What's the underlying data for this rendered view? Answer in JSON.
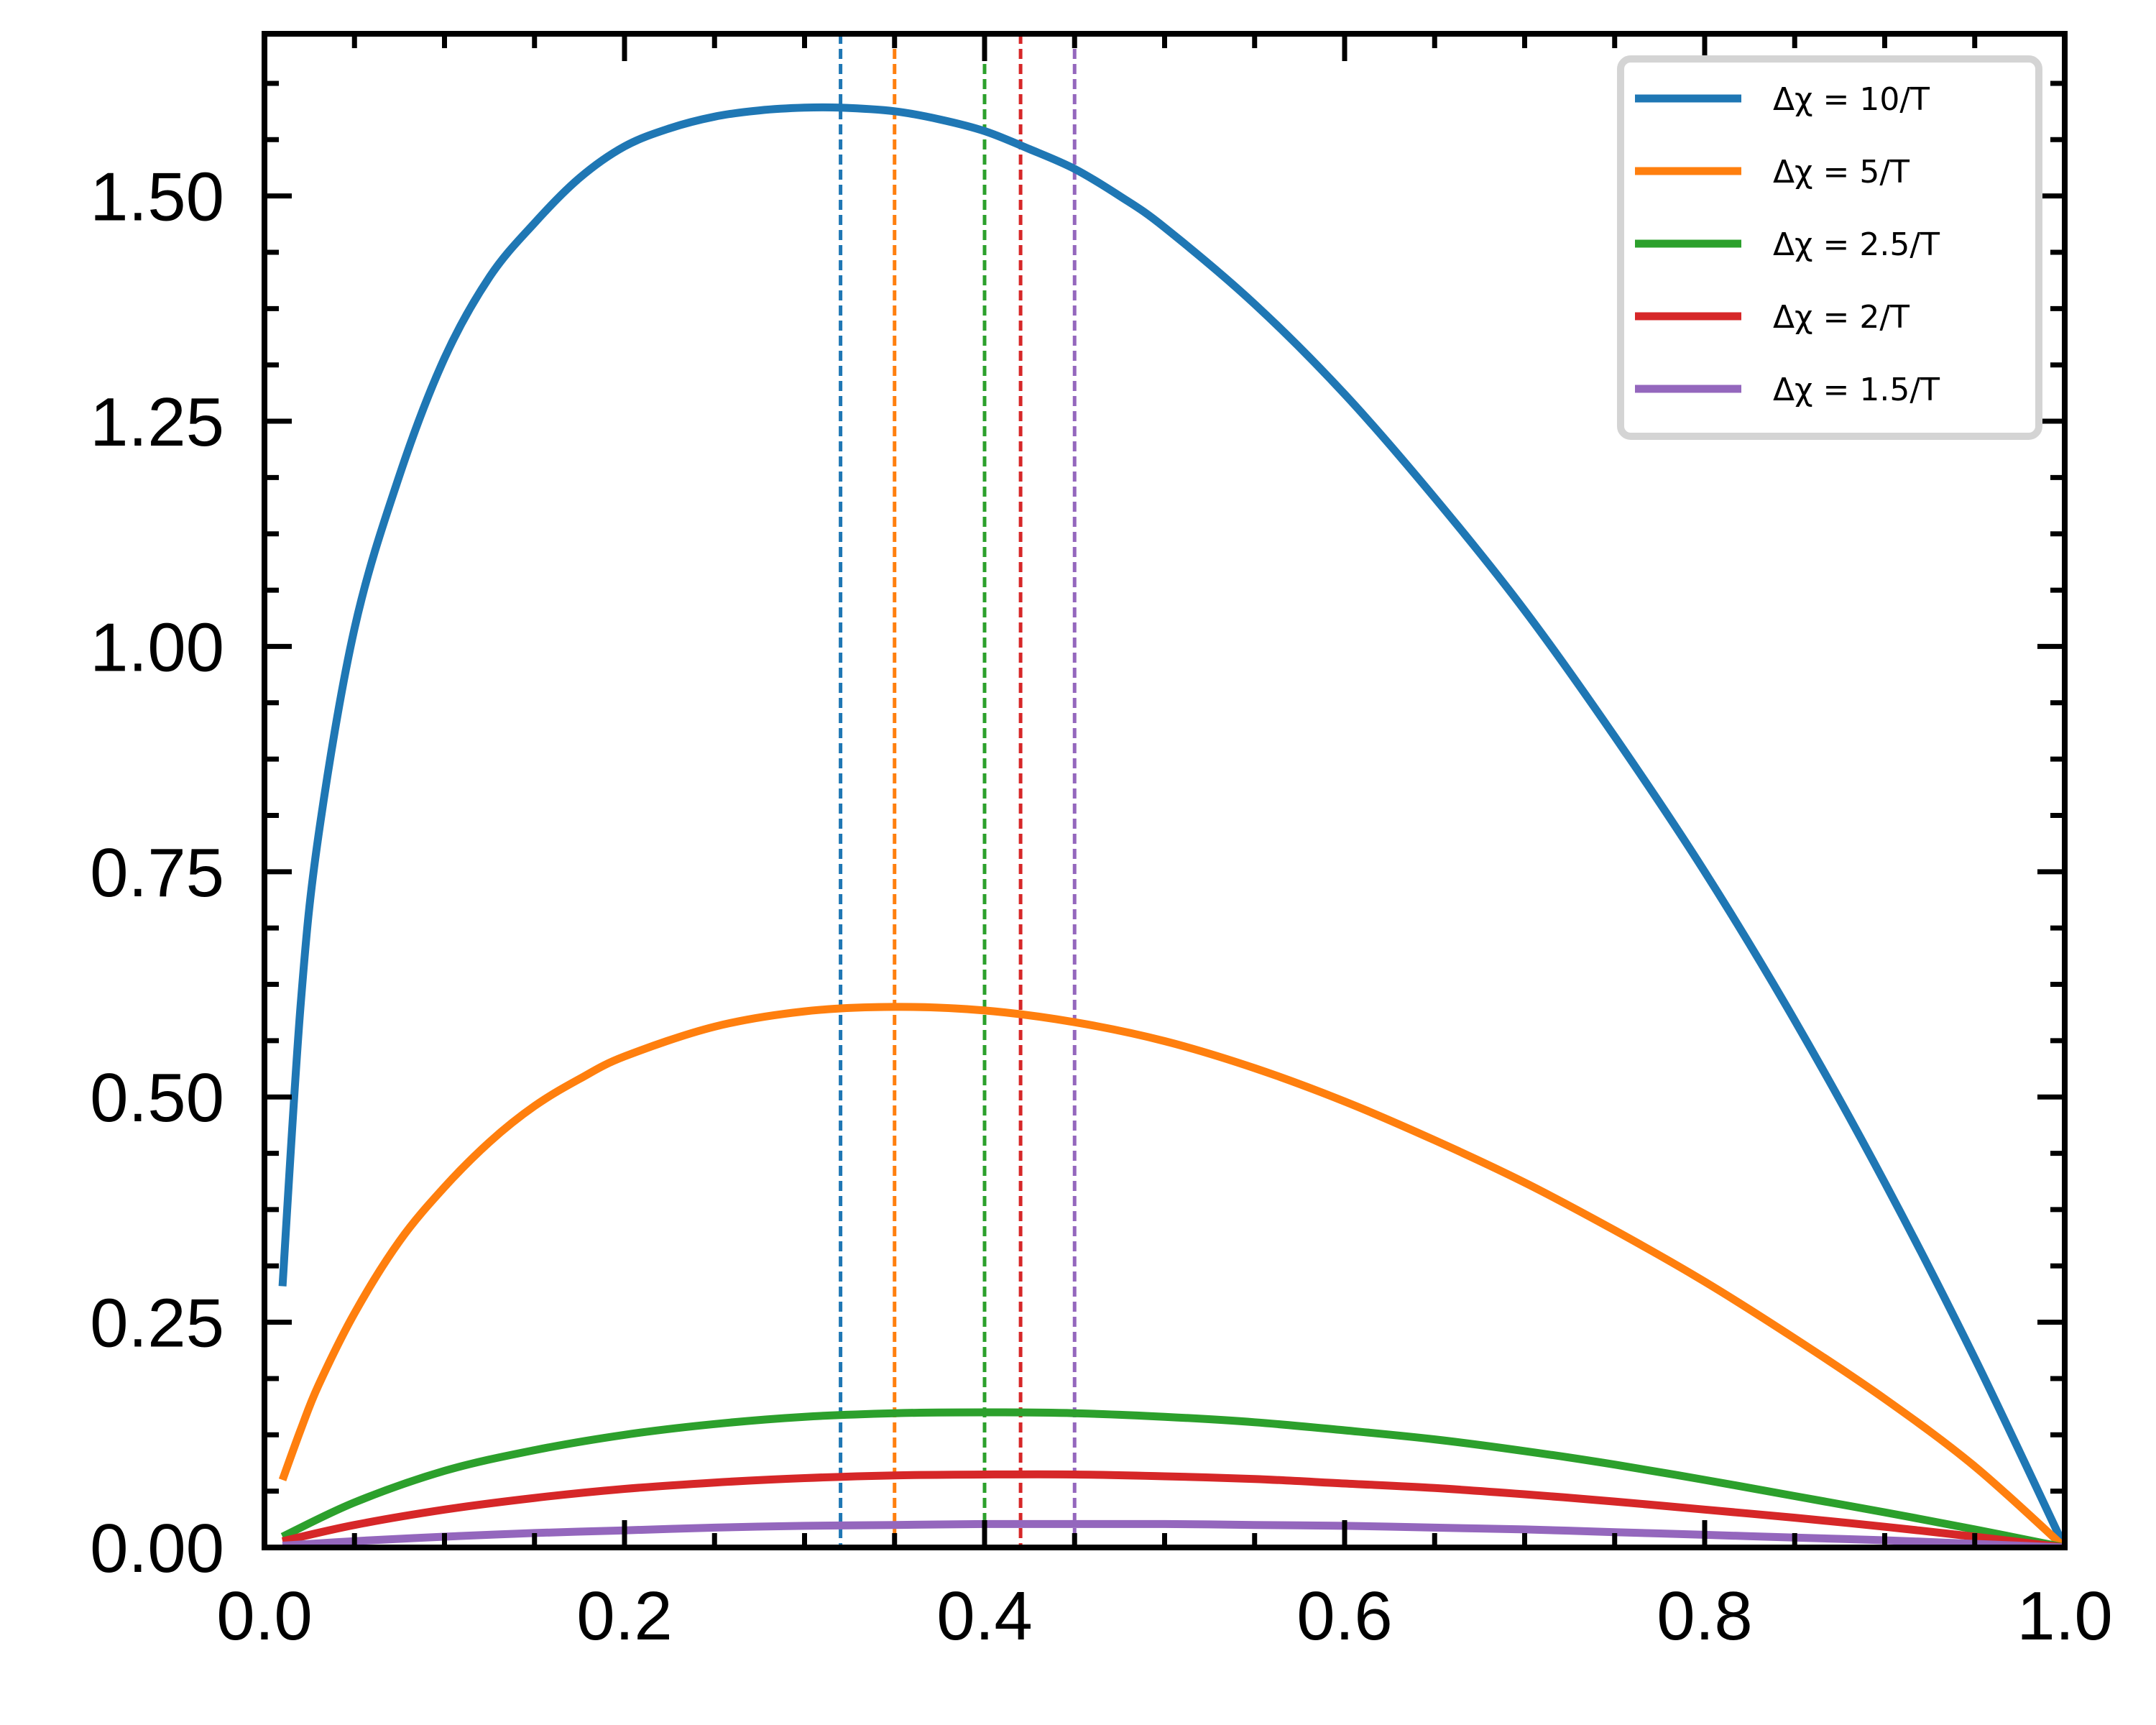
{
  "chart_data": {
    "type": "line",
    "title": "",
    "xlabel": "",
    "ylabel": "",
    "xlim": [
      0.0,
      1.0
    ],
    "ylim": [
      0.0,
      1.68
    ],
    "grid": false,
    "legend_position": "top-right",
    "x_ticks": [
      0.0,
      0.2,
      0.4,
      0.6,
      0.8,
      1.0
    ],
    "x_tick_labels": [
      "0.0",
      "0.2",
      "0.4",
      "0.6",
      "0.8",
      "1.0"
    ],
    "y_ticks": [
      0.0,
      0.25,
      0.5,
      0.75,
      1.0,
      1.25,
      1.5
    ],
    "y_tick_labels": [
      "0.00",
      "0.25",
      "0.50",
      "0.75",
      "1.00",
      "1.25",
      "1.50"
    ],
    "series": [
      {
        "name": "Δχ = 10/T",
        "color": "#1f77b4",
        "peak_x": 0.32,
        "x": [
          0.01,
          0.02,
          0.03,
          0.05,
          0.075,
          0.1,
          0.125,
          0.15,
          0.175,
          0.2,
          0.225,
          0.25,
          0.275,
          0.3,
          0.32,
          0.35,
          0.375,
          0.4,
          0.425,
          0.45,
          0.475,
          0.5,
          0.55,
          0.6,
          0.65,
          0.7,
          0.75,
          0.8,
          0.85,
          0.9,
          0.95,
          1.0
        ],
        "y": [
          0.29,
          0.6,
          0.79,
          1.02,
          1.19,
          1.32,
          1.41,
          1.47,
          1.52,
          1.555,
          1.575,
          1.588,
          1.595,
          1.598,
          1.598,
          1.594,
          1.585,
          1.572,
          1.552,
          1.53,
          1.5,
          1.465,
          1.38,
          1.28,
          1.165,
          1.04,
          0.9,
          0.75,
          0.585,
          0.405,
          0.21,
          0.0
        ]
      },
      {
        "name": "Δχ = 5/T",
        "color": "#ff7f0e",
        "peak_x": 0.35,
        "x": [
          0.01,
          0.02,
          0.03,
          0.05,
          0.075,
          0.1,
          0.125,
          0.15,
          0.175,
          0.2,
          0.25,
          0.3,
          0.35,
          0.4,
          0.45,
          0.5,
          0.55,
          0.6,
          0.65,
          0.7,
          0.75,
          0.8,
          0.85,
          0.9,
          0.95,
          1.0
        ],
        "y": [
          0.075,
          0.13,
          0.18,
          0.26,
          0.34,
          0.4,
          0.45,
          0.49,
          0.52,
          0.545,
          0.578,
          0.595,
          0.6,
          0.596,
          0.583,
          0.562,
          0.532,
          0.495,
          0.452,
          0.405,
          0.352,
          0.295,
          0.232,
          0.165,
          0.09,
          0.0
        ]
      },
      {
        "name": "Δχ = 2.5/T",
        "color": "#2ca02c",
        "peak_x": 0.4,
        "x": [
          0.01,
          0.05,
          0.1,
          0.15,
          0.2,
          0.25,
          0.3,
          0.35,
          0.4,
          0.45,
          0.5,
          0.55,
          0.6,
          0.65,
          0.7,
          0.75,
          0.8,
          0.85,
          0.9,
          0.95,
          1.0
        ],
        "y": [
          0.012,
          0.05,
          0.085,
          0.108,
          0.125,
          0.137,
          0.145,
          0.149,
          0.15,
          0.149,
          0.145,
          0.139,
          0.13,
          0.12,
          0.107,
          0.092,
          0.075,
          0.057,
          0.039,
          0.02,
          0.0
        ]
      },
      {
        "name": "Δχ = 2/T",
        "color": "#d62728",
        "peak_x": 0.42,
        "x": [
          0.01,
          0.05,
          0.1,
          0.15,
          0.2,
          0.25,
          0.3,
          0.35,
          0.4,
          0.45,
          0.5,
          0.55,
          0.6,
          0.65,
          0.7,
          0.75,
          0.8,
          0.85,
          0.9,
          0.95,
          1.0
        ],
        "y": [
          0.007,
          0.025,
          0.042,
          0.055,
          0.065,
          0.072,
          0.077,
          0.08,
          0.081,
          0.081,
          0.079,
          0.076,
          0.071,
          0.066,
          0.059,
          0.051,
          0.042,
          0.033,
          0.023,
          0.012,
          0.0
        ]
      },
      {
        "name": "Δχ = 1.5/T",
        "color": "#9467bd",
        "peak_x": 0.45,
        "x": [
          0.01,
          0.05,
          0.1,
          0.15,
          0.2,
          0.25,
          0.3,
          0.35,
          0.4,
          0.45,
          0.5,
          0.55,
          0.6,
          0.65,
          0.7,
          0.75,
          0.8,
          0.85,
          0.9,
          0.95,
          1.0
        ],
        "y": [
          0.002,
          0.007,
          0.012,
          0.016,
          0.019,
          0.022,
          0.024,
          0.025,
          0.026,
          0.026,
          0.026,
          0.025,
          0.024,
          0.022,
          0.02,
          0.017,
          0.014,
          0.011,
          0.008,
          0.004,
          0.0
        ]
      }
    ]
  }
}
